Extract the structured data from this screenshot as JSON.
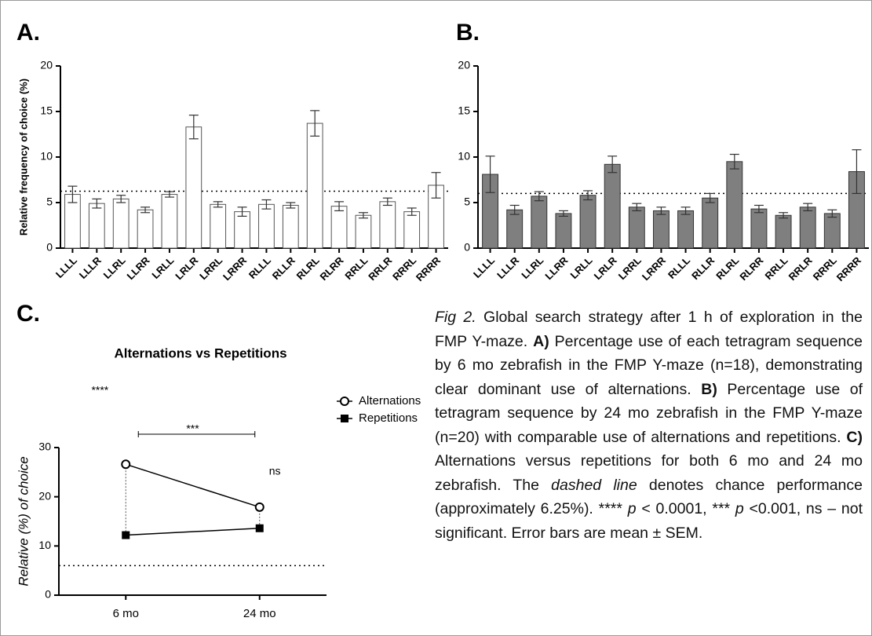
{
  "chart_data": [
    {
      "type": "bar",
      "panel": "A.",
      "y_label": "Relative frequency of choice (%)",
      "categories": [
        "LLLL",
        "LLLR",
        "LLRL",
        "LLRR",
        "LRLL",
        "LRLR",
        "LRRL",
        "LRRR",
        "RLLL",
        "RLLR",
        "RLRL",
        "RLRR",
        "RRLL",
        "RRLR",
        "RRRL",
        "RRRR"
      ],
      "values": [
        5.9,
        4.9,
        5.4,
        4.2,
        5.9,
        13.3,
        4.8,
        4.0,
        4.8,
        4.7,
        13.7,
        4.6,
        3.6,
        5.1,
        4.0,
        6.9
      ],
      "errors": [
        0.9,
        0.5,
        0.4,
        0.3,
        0.3,
        1.3,
        0.3,
        0.5,
        0.5,
        0.3,
        1.4,
        0.5,
        0.3,
        0.4,
        0.4,
        1.4
      ],
      "color": "#ffffff",
      "reference_line": 6.25,
      "ylim": [
        0,
        20
      ],
      "yticks": [
        0,
        5,
        10,
        15,
        20
      ]
    },
    {
      "type": "bar",
      "panel": "B.",
      "categories": [
        "LLLL",
        "LLLR",
        "LLRL",
        "LLRR",
        "LRLL",
        "LRLR",
        "LRRL",
        "LRRR",
        "RLLL",
        "RLLR",
        "RLRL",
        "RLRR",
        "RRLL",
        "RRLR",
        "RRRL",
        "RRRR"
      ],
      "values": [
        8.1,
        4.2,
        5.7,
        3.8,
        5.8,
        9.2,
        4.5,
        4.1,
        4.1,
        5.5,
        9.5,
        4.3,
        3.6,
        4.5,
        3.8,
        8.4
      ],
      "errors": [
        2.0,
        0.5,
        0.5,
        0.3,
        0.5,
        0.9,
        0.4,
        0.4,
        0.4,
        0.5,
        0.8,
        0.4,
        0.3,
        0.4,
        0.4,
        2.4
      ],
      "color": "#7f7f7f",
      "reference_line": 6.0,
      "ylim": [
        0,
        20
      ],
      "yticks": [
        0,
        5,
        10,
        15,
        20
      ]
    },
    {
      "type": "line",
      "panel": "C.",
      "title": "Alternations vs Repetitions",
      "y_label": "Relative (%) of choice",
      "categories": [
        "6 mo",
        "24 mo"
      ],
      "series": [
        {
          "name": "Alternations",
          "color": "#000000",
          "marker": "circle",
          "values": [
            26.6,
            17.9
          ]
        },
        {
          "name": "Repetitions",
          "color": "#000000",
          "marker": "square",
          "values": [
            12.2,
            13.6
          ]
        }
      ],
      "annotations": [
        "***",
        "****",
        "ns"
      ],
      "reference_line": 6,
      "ylim": [
        0,
        30
      ],
      "yticks": [
        0,
        10,
        20,
        30
      ]
    }
  ],
  "caption": [
    "Fig 2.",
    " Global search strategy after 1 h of exploration in the FMP Y-maze. ",
    "A)",
    " Percentage use of each tetragram sequence by 6 mo zebrafish in the FMP Y-maze (n=18), demonstrating clear dominant use of alternations. ",
    "B)",
    " Percentage use of tetragram sequence by 24 mo zebrafish in the FMP Y-maze (n=20) with comparable use of alternations and repetitions. ",
    "C)",
    " Alternations versus repetitions for both 6 mo and 24 mo zebrafish. The ",
    "dashed line",
    " denotes chance performance (approximately 6.25%). **** ",
    "p",
    " < 0.0001, *** ",
    "p",
    " <0.001, ns – not significant. Error bars are mean ± SEM."
  ]
}
